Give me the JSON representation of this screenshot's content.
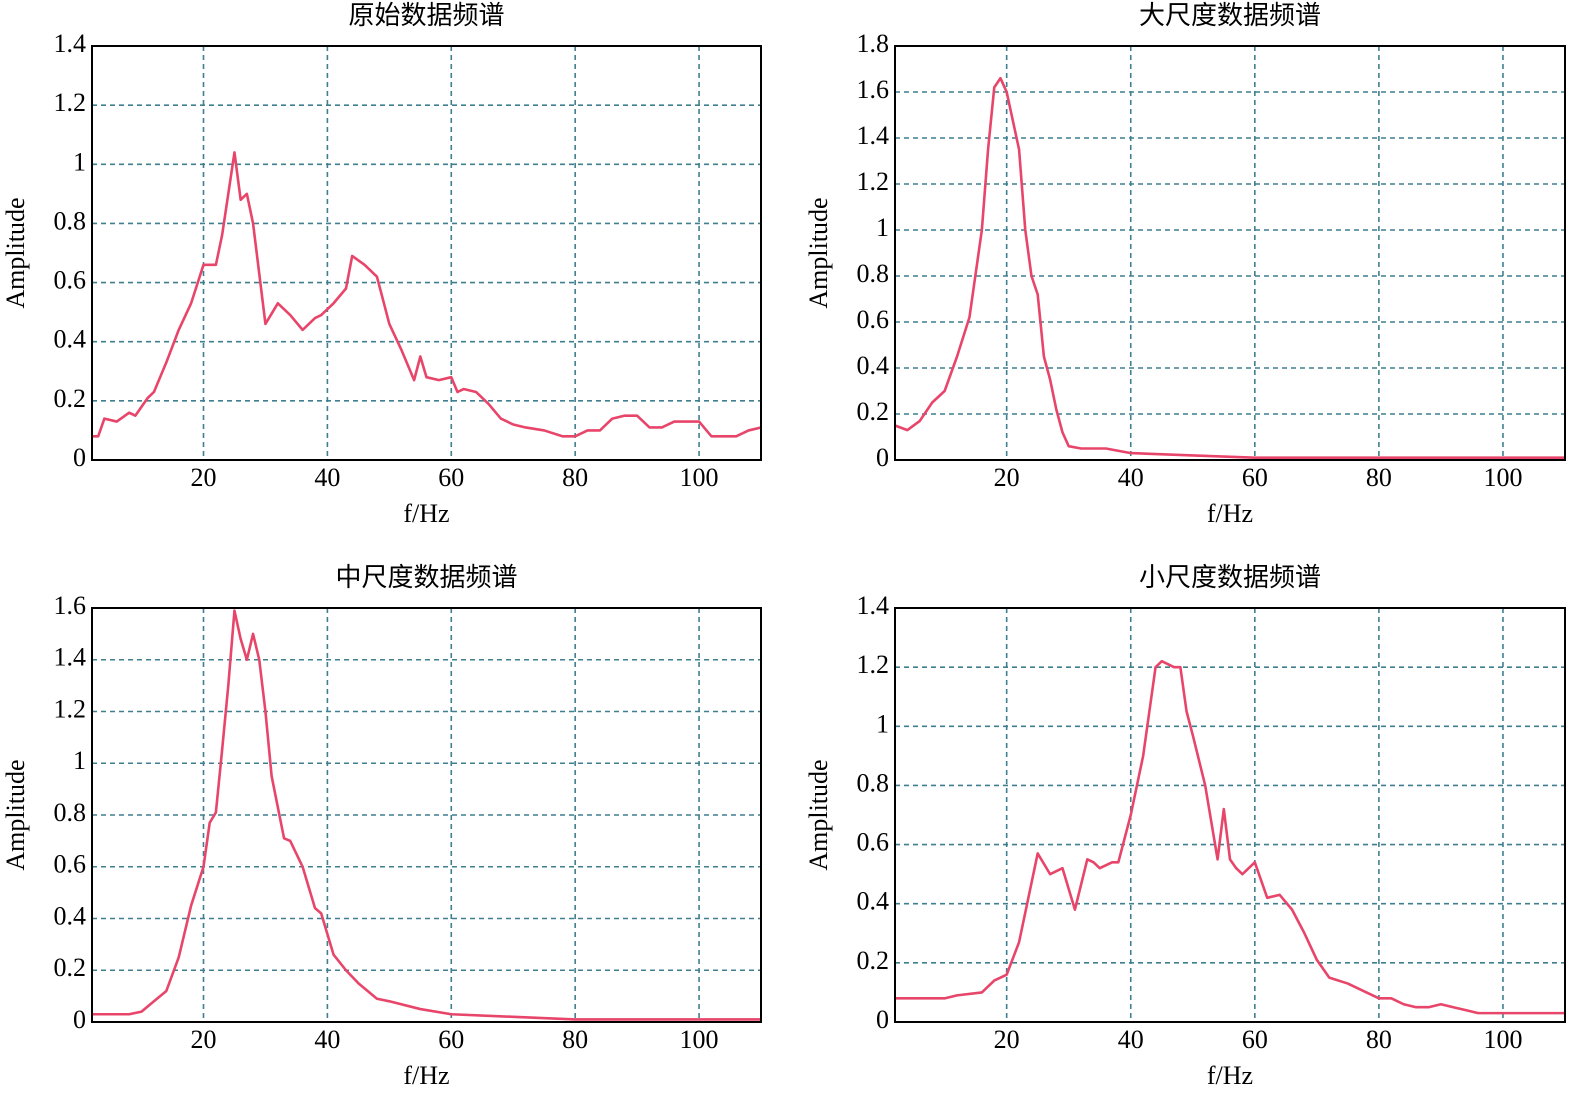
{
  "chart_data": [
    {
      "type": "line",
      "title": "原始数据频谱",
      "xlabel": "f/Hz",
      "ylabel": "Amplitude",
      "color": "#e8456a",
      "xlim": [
        2,
        110
      ],
      "xticks": [
        20,
        40,
        60,
        80,
        100
      ],
      "ylim": [
        0,
        1.4
      ],
      "yticks": [
        0,
        0.2,
        0.4,
        0.6,
        0.8,
        1,
        1.2,
        1.4
      ],
      "grid": true,
      "x": [
        2,
        3,
        4,
        6,
        8,
        9,
        11,
        12,
        14,
        16,
        18,
        20,
        22,
        23,
        25,
        26,
        27,
        28,
        30,
        32,
        34,
        36,
        38,
        39,
        41,
        43,
        44,
        46,
        48,
        50,
        52,
        54,
        55,
        56,
        58,
        60,
        61,
        62,
        64,
        66,
        68,
        70,
        72,
        75,
        78,
        80,
        82,
        84,
        86,
        88,
        90,
        92,
        94,
        96,
        98,
        100,
        102,
        104,
        106,
        108,
        110
      ],
      "values": [
        0.08,
        0.08,
        0.14,
        0.13,
        0.16,
        0.15,
        0.21,
        0.23,
        0.33,
        0.44,
        0.53,
        0.66,
        0.66,
        0.76,
        1.04,
        0.88,
        0.9,
        0.8,
        0.46,
        0.53,
        0.49,
        0.44,
        0.48,
        0.49,
        0.53,
        0.58,
        0.69,
        0.66,
        0.62,
        0.46,
        0.37,
        0.27,
        0.35,
        0.28,
        0.27,
        0.28,
        0.23,
        0.24,
        0.23,
        0.19,
        0.14,
        0.12,
        0.11,
        0.1,
        0.08,
        0.08,
        0.1,
        0.1,
        0.14,
        0.15,
        0.15,
        0.11,
        0.11,
        0.13,
        0.13,
        0.13,
        0.08,
        0.08,
        0.08,
        0.1,
        0.11
      ]
    },
    {
      "type": "line",
      "title": "大尺度数据频谱",
      "xlabel": "f/Hz",
      "ylabel": "Amplitude",
      "color": "#e8456a",
      "xlim": [
        2,
        110
      ],
      "xticks": [
        20,
        40,
        60,
        80,
        100
      ],
      "ylim": [
        0,
        1.8
      ],
      "yticks": [
        0,
        0.2,
        0.4,
        0.6,
        0.8,
        1,
        1.2,
        1.4,
        1.6,
        1.8
      ],
      "grid": true,
      "x": [
        2,
        4,
        6,
        8,
        10,
        12,
        14,
        16,
        17,
        18,
        19,
        20,
        22,
        23,
        24,
        25,
        26,
        27,
        28,
        29,
        30,
        32,
        36,
        40,
        50,
        60,
        80,
        110
      ],
      "values": [
        0.15,
        0.13,
        0.17,
        0.25,
        0.3,
        0.45,
        0.62,
        1.0,
        1.35,
        1.62,
        1.66,
        1.6,
        1.35,
        1.0,
        0.8,
        0.72,
        0.45,
        0.35,
        0.22,
        0.12,
        0.06,
        0.05,
        0.05,
        0.03,
        0.02,
        0.01,
        0.01,
        0.01
      ]
    },
    {
      "type": "line",
      "title": "中尺度数据频谱",
      "xlabel": "f/Hz",
      "ylabel": "Amplitude",
      "color": "#e8456a",
      "xlim": [
        2,
        110
      ],
      "xticks": [
        20,
        40,
        60,
        80,
        100
      ],
      "ylim": [
        0,
        1.6
      ],
      "yticks": [
        0,
        0.2,
        0.4,
        0.6,
        0.8,
        1,
        1.2,
        1.4,
        1.6
      ],
      "grid": true,
      "x": [
        2,
        8,
        10,
        12,
        14,
        16,
        18,
        20,
        21,
        22,
        23,
        24,
        25,
        26,
        27,
        28,
        29,
        30,
        31,
        33,
        34,
        36,
        38,
        39,
        41,
        43,
        45,
        48,
        50,
        55,
        60,
        70,
        80,
        90,
        100,
        110
      ],
      "values": [
        0.03,
        0.03,
        0.04,
        0.08,
        0.12,
        0.25,
        0.45,
        0.6,
        0.77,
        0.81,
        1.05,
        1.3,
        1.59,
        1.48,
        1.4,
        1.5,
        1.4,
        1.2,
        0.95,
        0.71,
        0.7,
        0.6,
        0.44,
        0.42,
        0.26,
        0.2,
        0.15,
        0.09,
        0.08,
        0.05,
        0.03,
        0.02,
        0.01,
        0.01,
        0.01,
        0.01
      ]
    },
    {
      "type": "line",
      "title": "小尺度数据频谱",
      "xlabel": "f/Hz",
      "ylabel": "Amplitude",
      "color": "#e8456a",
      "xlim": [
        2,
        110
      ],
      "xticks": [
        20,
        40,
        60,
        80,
        100
      ],
      "ylim": [
        0,
        1.4
      ],
      "yticks": [
        0,
        0.2,
        0.4,
        0.6,
        0.8,
        1,
        1.2,
        1.4
      ],
      "grid": true,
      "x": [
        2,
        10,
        12,
        16,
        18,
        20,
        22,
        25,
        27,
        29,
        31,
        33,
        34,
        35,
        37,
        38,
        40,
        42,
        43,
        44,
        45,
        46,
        47,
        48,
        49,
        50,
        52,
        54,
        55,
        56,
        57,
        58,
        60,
        61,
        62,
        64,
        66,
        68,
        70,
        72,
        75,
        78,
        80,
        82,
        84,
        86,
        88,
        90,
        92,
        94,
        96,
        98,
        100,
        102,
        110
      ],
      "values": [
        0.08,
        0.08,
        0.09,
        0.1,
        0.14,
        0.16,
        0.27,
        0.57,
        0.5,
        0.52,
        0.38,
        0.55,
        0.54,
        0.52,
        0.54,
        0.54,
        0.7,
        0.9,
        1.05,
        1.2,
        1.22,
        1.21,
        1.2,
        1.2,
        1.05,
        0.97,
        0.8,
        0.55,
        0.72,
        0.55,
        0.52,
        0.5,
        0.54,
        0.48,
        0.42,
        0.43,
        0.38,
        0.3,
        0.21,
        0.15,
        0.13,
        0.1,
        0.08,
        0.08,
        0.06,
        0.05,
        0.05,
        0.06,
        0.05,
        0.04,
        0.03,
        0.03,
        0.03,
        0.03,
        0.03
      ]
    }
  ]
}
